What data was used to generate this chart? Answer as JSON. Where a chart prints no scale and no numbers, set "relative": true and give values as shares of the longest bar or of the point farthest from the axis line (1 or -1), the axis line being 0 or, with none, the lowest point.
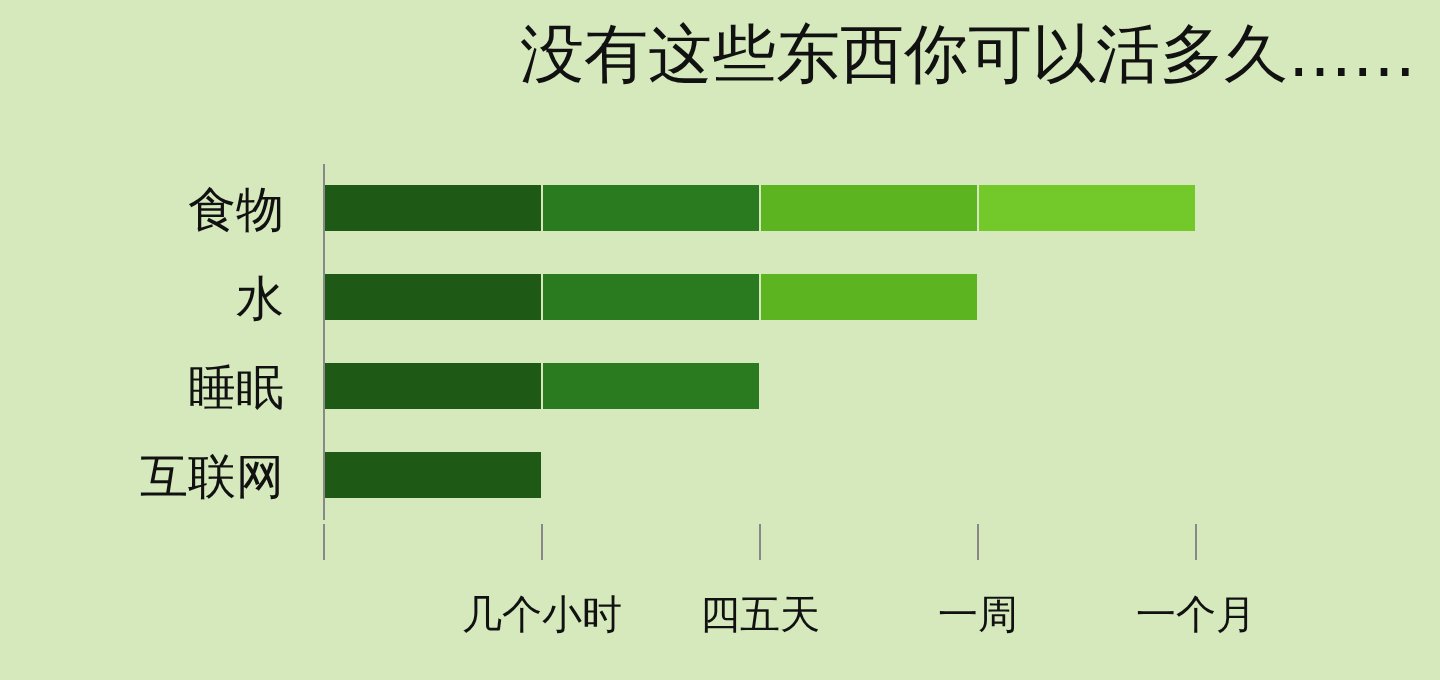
{
  "chart_data": {
    "type": "bar",
    "orientation": "horizontal",
    "stacked": true,
    "relative": true,
    "title": "没有这些东西你可以活多久……",
    "categories": [
      "食物",
      "水",
      "睡眠",
      "互联网"
    ],
    "series": [
      {
        "color": "#1e5a16",
        "values": [
          0.25,
          0.25,
          0.25,
          0.25
        ]
      },
      {
        "color": "#2a7b1f",
        "values": [
          0.25,
          0.25,
          0.25,
          null
        ]
      },
      {
        "color": "#5db421",
        "values": [
          0.25,
          0.25,
          null,
          null
        ]
      },
      {
        "color": "#74c92a",
        "values": [
          0.25,
          null,
          null,
          null
        ]
      }
    ],
    "annotations": [
      {
        "text": "几个小时",
        "x": 0.25
      },
      {
        "text": "四五天",
        "x": 0.5
      },
      {
        "text": "一周",
        "x": 0.75
      },
      {
        "text": "一个月",
        "x": 1
      }
    ],
    "grid": false,
    "legend": false
  }
}
